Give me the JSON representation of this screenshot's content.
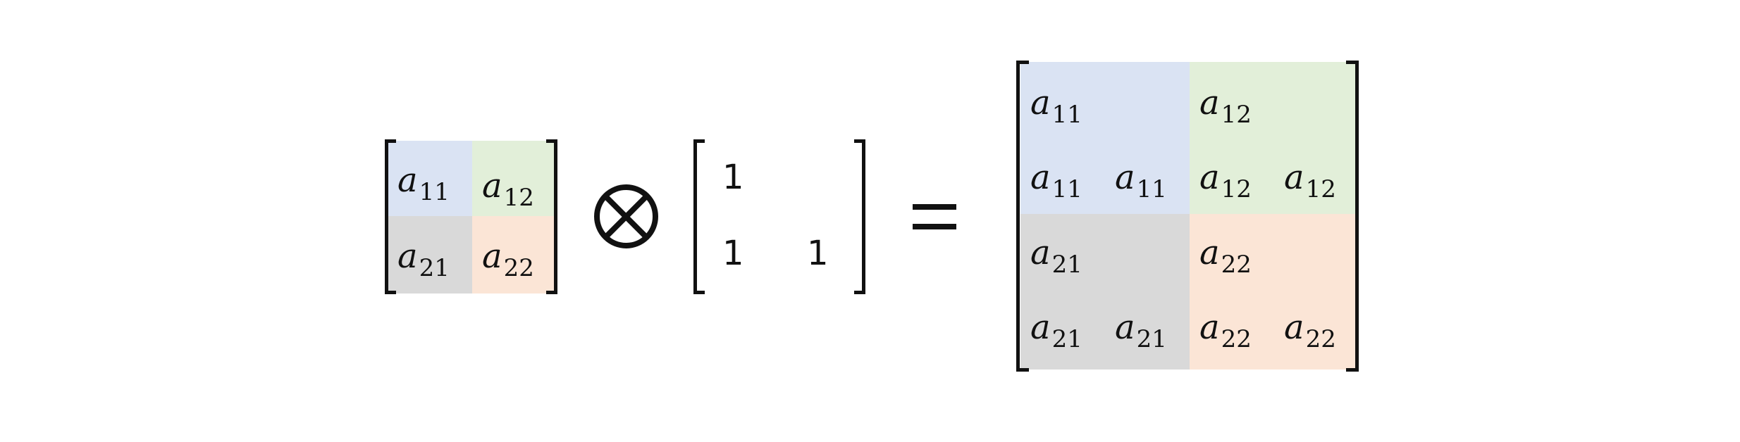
{
  "colors": {
    "a11": "#dae3f3",
    "a12": "#e2efd9",
    "a21": "#d9d9d9",
    "a22": "#fbe5d6",
    "ink": "#111111"
  },
  "operators": {
    "kron_icon": "circled-times-icon",
    "equals_icon": "equals-sign-icon"
  },
  "left_matrix": {
    "a11": {
      "base": "a",
      "sub": "11"
    },
    "a12": {
      "base": "a",
      "sub": "12"
    },
    "a21": {
      "base": "a",
      "sub": "21"
    },
    "a22": {
      "base": "a",
      "sub": "22"
    }
  },
  "kernel_matrix": {
    "r1c1": "1",
    "r2c1": "1",
    "r2c2": "1"
  },
  "result_matrix": {
    "a11": {
      "base": "a",
      "sub": "11"
    },
    "a12": {
      "base": "a",
      "sub": "12"
    },
    "a21": {
      "base": "a",
      "sub": "21"
    },
    "a22": {
      "base": "a",
      "sub": "22"
    }
  }
}
